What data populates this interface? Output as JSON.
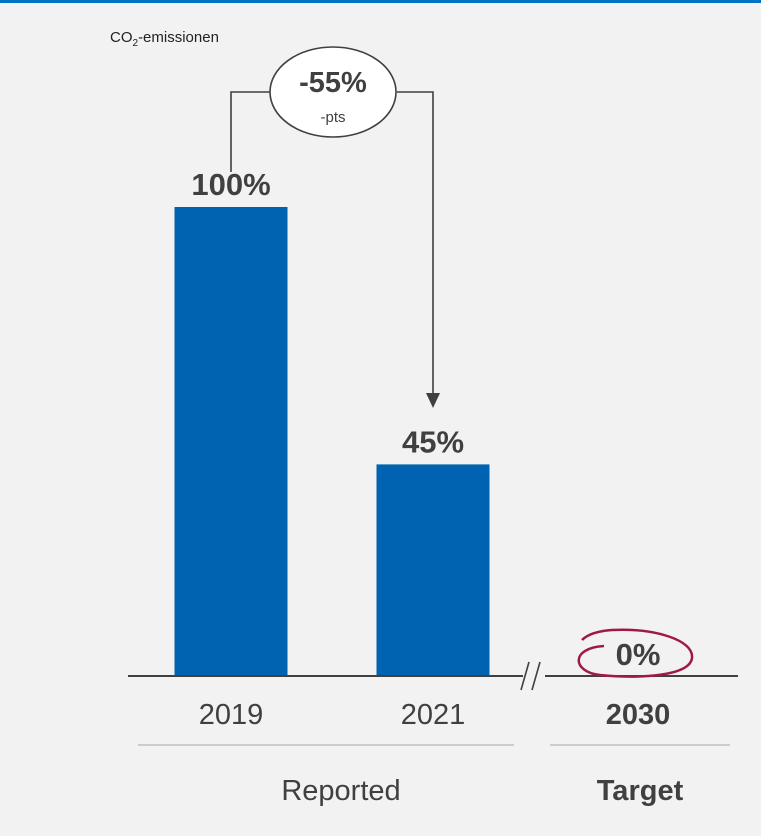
{
  "chart_data": {
    "type": "bar",
    "ylabel_main": "CO",
    "ylabel_sub": "2",
    "ylabel_rest": "-emissionen",
    "categories": [
      "2019",
      "2021",
      "2030"
    ],
    "values": [
      100,
      45,
      0
    ],
    "value_labels": [
      "100%",
      "45%",
      "0%"
    ],
    "ylim": [
      0,
      100
    ],
    "change": {
      "value": "-55%",
      "unit": "-pts"
    },
    "groups": [
      {
        "label": "Reported",
        "categories": [
          "2019",
          "2021"
        ]
      },
      {
        "label": "Target",
        "categories": [
          "2030"
        ]
      }
    ]
  },
  "colors": {
    "bar": "#0063b1",
    "axis": "#404040",
    "top_rule": "#0072c6",
    "circle": "#a0184a",
    "background": "#f2f2f2"
  }
}
